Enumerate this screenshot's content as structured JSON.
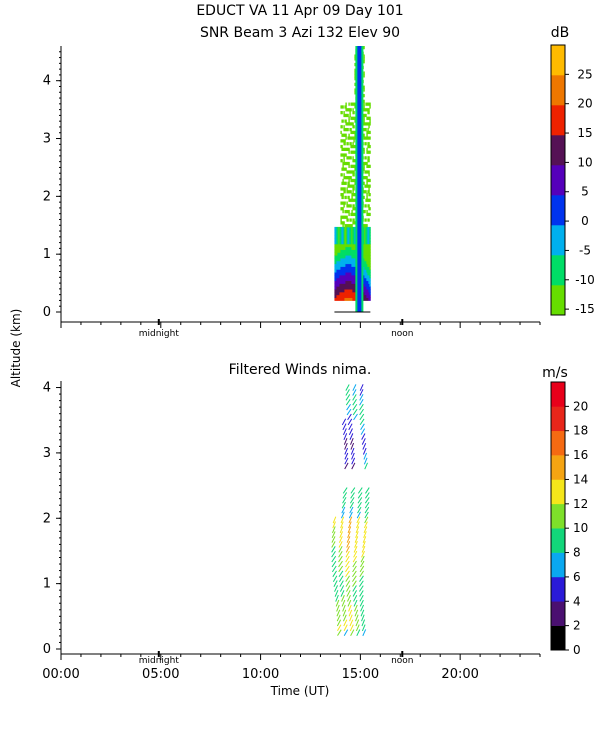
{
  "title": {
    "line1": "EDUCT VA  11 Apr 09 Day 101",
    "line2": "SNR Beam 3 Azi 132 Elev 90"
  },
  "shared_axes": {
    "ylabel": "Altitude (km)",
    "xlabel": "Time (UT)",
    "x_ticks": [
      "00:00",
      "05:00",
      "10:00",
      "15:00",
      "20:00"
    ],
    "markers": [
      "midnight",
      "noon"
    ]
  },
  "chart_data": [
    {
      "type": "heatmap",
      "title": "",
      "ylim": [
        0,
        4.6
      ],
      "xlim": [
        0,
        24
      ],
      "y_ticks": [
        "0",
        "1",
        "2",
        "3",
        "4"
      ],
      "colorbar": {
        "unit": "dB",
        "ticks": [
          "25",
          "20",
          "15",
          "10",
          "5",
          "0",
          "-5",
          "-10",
          "-15"
        ],
        "range": [
          -16,
          30
        ],
        "colors": [
          "#66dd00",
          "#00dd66",
          "#00b0ee",
          "#0033ee",
          "#5500bb",
          "#551155",
          "#ee2200",
          "#ee7700",
          "#ffbb00"
        ]
      },
      "data_extent": {
        "time_start": 13.7,
        "time_end": 15.5,
        "alt_min": 0.2,
        "alt_max": 4.6
      },
      "highlight_time": 14.95
    },
    {
      "type": "scatter",
      "title": "Filtered Winds nima.",
      "ylim": [
        0,
        4.1
      ],
      "xlim": [
        0,
        24
      ],
      "y_ticks": [
        "0",
        "1",
        "2",
        "3",
        "4"
      ],
      "colorbar": {
        "unit": "m/s",
        "ticks": [
          "20",
          "18",
          "16",
          "14",
          "12",
          "10",
          "8",
          "6",
          "4",
          "2",
          "0"
        ],
        "range": [
          0,
          22
        ],
        "colors": [
          "#000000",
          "#4a1070",
          "#2a1ad8",
          "#0aa8f0",
          "#12d67a",
          "#7ee02a",
          "#f5e61a",
          "#f5a412",
          "#f56a12",
          "#e8261a",
          "#e8001a"
        ]
      },
      "columns_hours": [
        13.8,
        14.15,
        14.5,
        14.85,
        15.2
      ],
      "alt_range": [
        0.25,
        4.05
      ]
    }
  ]
}
